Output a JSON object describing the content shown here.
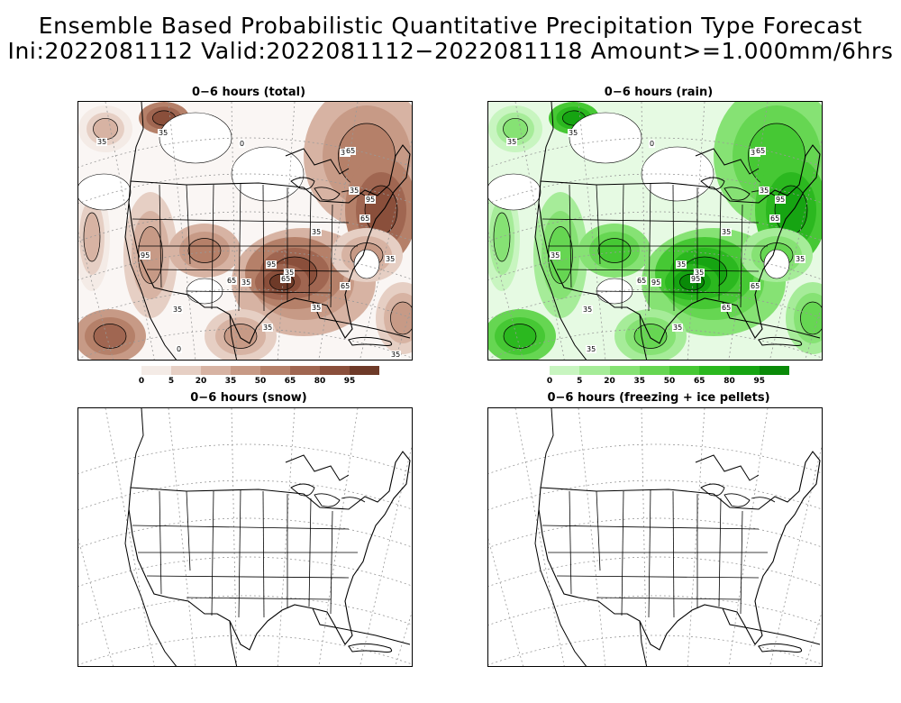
{
  "header": {
    "line1": "Ensemble Based Probabilistic Quantitative Precipitation Type Forecast",
    "line2": "Ini:2022081112 Valid:2022081112−2022081118 Amount>=1.000mm/6hrs"
  },
  "panels": {
    "total": {
      "title": "0−6 hours (total)"
    },
    "rain": {
      "title": "0−6 hours (rain)"
    },
    "snow": {
      "title": "0−6 hours (snow)"
    },
    "freezing": {
      "title": "0−6 hours (freezing + ice pellets)"
    }
  },
  "colorbar_total": {
    "labels": [
      "0",
      "5",
      "20",
      "35",
      "50",
      "65",
      "80",
      "95"
    ],
    "colors": [
      "#f4ebe6",
      "#e6cfc4",
      "#d7b3a3",
      "#c79a86",
      "#b58069",
      "#a06651",
      "#8a4f3b",
      "#6e3a28"
    ]
  },
  "colorbar_rain": {
    "labels": [
      "0",
      "5",
      "20",
      "35",
      "50",
      "65",
      "80",
      "95"
    ],
    "colors": [
      "#c8f5c0",
      "#a6ec99",
      "#86e274",
      "#66d652",
      "#46c834",
      "#2bb81f",
      "#16a412",
      "#0a8a08"
    ]
  },
  "contour_labels": {
    "total": [
      "35",
      "35",
      "0",
      "35",
      "65",
      "35",
      "95",
      "65",
      "35",
      "35",
      "35",
      "65",
      "95",
      "65",
      "35",
      "35",
      "95",
      "65",
      "35",
      "35",
      "0",
      "35"
    ],
    "rain": [
      "35",
      "35",
      "0",
      "35",
      "65",
      "35",
      "95",
      "65",
      "35",
      "35",
      "95",
      "65",
      "35",
      "95",
      "65",
      "35",
      "35",
      "65",
      "35",
      "35",
      "35"
    ]
  }
}
